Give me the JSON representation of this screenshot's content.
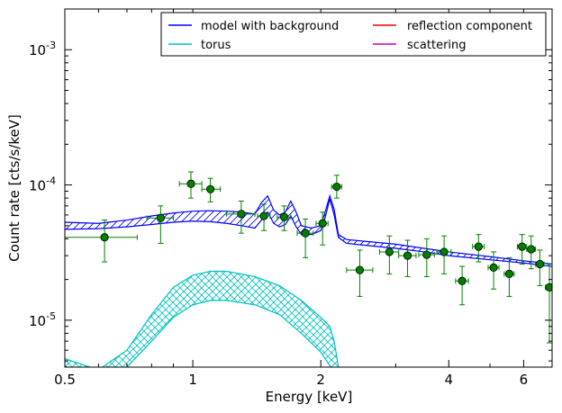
{
  "chart_data": {
    "type": "scatter",
    "xlabel": "Energy [keV]",
    "ylabel": "Count rate [cts/s/keV]",
    "xscale": "log",
    "yscale": "log",
    "xlim": [
      0.5,
      7.0
    ],
    "ylim": [
      4.5e-06,
      0.002
    ],
    "grid": false,
    "legend_position": "top-right",
    "x_ticks": [
      {
        "value": 0.5,
        "label": "0.5"
      },
      {
        "value": 1,
        "label": "1"
      },
      {
        "value": 2,
        "label": "2"
      },
      {
        "value": 4,
        "label": "4"
      },
      {
        "value": 6,
        "label": "6"
      }
    ],
    "y_ticks": [
      {
        "value": 1e-05,
        "base": "10",
        "exp": "-5"
      },
      {
        "value": 0.0001,
        "base": "10",
        "exp": "-4"
      },
      {
        "value": 0.001,
        "base": "10",
        "exp": "-3"
      }
    ],
    "legend": [
      {
        "name": "model with background",
        "color": "#0000ff"
      },
      {
        "name": "reflection component",
        "color": "#ff0000"
      },
      {
        "name": "torus",
        "color": "#00bfbf"
      },
      {
        "name": "scattering",
        "color": "#bf00bf"
      }
    ],
    "series": [
      {
        "name": "model with background",
        "color": "#0000ff",
        "style": "band",
        "x": [
          0.5,
          0.6,
          0.7,
          0.8,
          0.9,
          1.0,
          1.1,
          1.2,
          1.3,
          1.4,
          1.45,
          1.5,
          1.55,
          1.6,
          1.65,
          1.7,
          1.75,
          1.8,
          1.9,
          2.0,
          2.05,
          2.1,
          2.15,
          2.2,
          2.3,
          2.5,
          3.0,
          3.5,
          4.0,
          5.0,
          6.0,
          7.0
        ],
        "lower": [
          4.7e-05,
          4.75e-05,
          4.9e-05,
          5.1e-05,
          5.3e-05,
          5.4e-05,
          5.35e-05,
          5.2e-05,
          5e-05,
          4.8e-05,
          5.5e-05,
          6.3e-05,
          5.2e-05,
          4.9e-05,
          5.1e-05,
          5.9e-05,
          4.9e-05,
          4.3e-05,
          4.3e-05,
          4.6e-05,
          5.8e-05,
          7.9e-05,
          6e-05,
          4.1e-05,
          3.7e-05,
          3.6e-05,
          3.4e-05,
          3.2e-05,
          3e-05,
          2.8e-05,
          2.65e-05,
          2.5e-05
        ],
        "upper": [
          5.3e-05,
          5.2e-05,
          5.5e-05,
          5.9e-05,
          6.2e-05,
          6.4e-05,
          6.45e-05,
          6.4e-05,
          6.3e-05,
          6.1e-05,
          7.4e-05,
          8.3e-05,
          6.5e-05,
          6e-05,
          6.3e-05,
          7.6e-05,
          6.3e-05,
          5e-05,
          4.8e-05,
          5e-05,
          6.4e-05,
          8.3e-05,
          6.6e-05,
          4.3e-05,
          3.95e-05,
          3.85e-05,
          3.65e-05,
          3.4e-05,
          3.2e-05,
          2.95e-05,
          2.75e-05,
          2.6e-05
        ]
      },
      {
        "name": "torus",
        "color": "#00bfbf",
        "style": "band",
        "x": [
          0.5,
          0.55,
          0.6,
          0.7,
          0.8,
          0.9,
          1.0,
          1.1,
          1.2,
          1.4,
          1.6,
          1.8,
          2.0,
          2.1,
          2.15,
          2.2
        ],
        "lower": [
          4.6e-06,
          4e-06,
          3.5e-06,
          4.5e-06,
          7e-06,
          1.05e-05,
          1.3e-05,
          1.4e-05,
          1.4e-05,
          1.3e-05,
          1.1e-05,
          8e-06,
          5.8e-06,
          4.6e-06,
          4e-06,
          3.5e-06
        ],
        "upper": [
          5.2e-06,
          4.7e-06,
          4.3e-06,
          6e-06,
          1.1e-05,
          1.75e-05,
          2.15e-05,
          2.3e-05,
          2.3e-05,
          2.1e-05,
          1.8e-05,
          1.4e-05,
          1.05e-05,
          9e-06,
          7e-06,
          4.5e-06
        ]
      },
      {
        "name": "data",
        "color": "#006400",
        "style": "errorbar",
        "points": [
          {
            "x": 0.62,
            "y": 4.1e-05,
            "xlo": 0.5,
            "xhi": 0.74,
            "ylo": 2.7e-05,
            "yhi": 5.5e-05
          },
          {
            "x": 0.84,
            "y": 5.7e-05,
            "xlo": 0.78,
            "xhi": 0.9,
            "ylo": 3.7e-05,
            "yhi": 7e-05
          },
          {
            "x": 0.99,
            "y": 0.000102,
            "xlo": 0.93,
            "xhi": 1.05,
            "ylo": 8e-05,
            "yhi": 0.000125
          },
          {
            "x": 1.1,
            "y": 9.3e-05,
            "xlo": 1.05,
            "xhi": 1.16,
            "ylo": 7.5e-05,
            "yhi": 0.000112
          },
          {
            "x": 1.3,
            "y": 6.1e-05,
            "xlo": 1.2,
            "xhi": 1.4,
            "ylo": 4.4e-05,
            "yhi": 7.6e-05
          },
          {
            "x": 1.47,
            "y": 5.9e-05,
            "xlo": 1.42,
            "xhi": 1.52,
            "ylo": 4.6e-05,
            "yhi": 7.2e-05
          },
          {
            "x": 1.64,
            "y": 5.8e-05,
            "xlo": 1.58,
            "xhi": 1.7,
            "ylo": 4.6e-05,
            "yhi": 7e-05
          },
          {
            "x": 1.84,
            "y": 4.4e-05,
            "xlo": 1.76,
            "xhi": 1.92,
            "ylo": 2.9e-05,
            "yhi": 5.6e-05
          },
          {
            "x": 2.02,
            "y": 5.2e-05,
            "xlo": 1.95,
            "xhi": 2.08,
            "ylo": 3.6e-05,
            "yhi": 6.3e-05
          },
          {
            "x": 2.18,
            "y": 9.7e-05,
            "xlo": 2.12,
            "xhi": 2.24,
            "ylo": 8e-05,
            "yhi": 0.000118
          },
          {
            "x": 2.47,
            "y": 2.35e-05,
            "xlo": 2.3,
            "xhi": 2.65,
            "ylo": 1.5e-05,
            "yhi": 3.3e-05
          },
          {
            "x": 2.9,
            "y": 3.2e-05,
            "xlo": 2.75,
            "xhi": 3.05,
            "ylo": 2.2e-05,
            "yhi": 4.2e-05
          },
          {
            "x": 3.2,
            "y": 3e-05,
            "xlo": 3.05,
            "xhi": 3.35,
            "ylo": 2.1e-05,
            "yhi": 3.9e-05
          },
          {
            "x": 3.55,
            "y": 3.05e-05,
            "xlo": 3.4,
            "xhi": 3.7,
            "ylo": 2.1e-05,
            "yhi": 4e-05
          },
          {
            "x": 3.9,
            "y": 3.2e-05,
            "xlo": 3.75,
            "xhi": 4.05,
            "ylo": 2.2e-05,
            "yhi": 4.2e-05
          },
          {
            "x": 4.3,
            "y": 1.95e-05,
            "xlo": 4.15,
            "xhi": 4.45,
            "ylo": 1.3e-05,
            "yhi": 2.5e-05
          },
          {
            "x": 4.7,
            "y": 3.5e-05,
            "xlo": 4.55,
            "xhi": 4.85,
            "ylo": 2.7e-05,
            "yhi": 4.3e-05
          },
          {
            "x": 5.1,
            "y": 2.45e-05,
            "xlo": 4.95,
            "xhi": 5.25,
            "ylo": 1.7e-05,
            "yhi": 3.2e-05
          },
          {
            "x": 5.55,
            "y": 2.2e-05,
            "xlo": 5.4,
            "xhi": 5.7,
            "ylo": 1.5e-05,
            "yhi": 2.9e-05
          },
          {
            "x": 5.95,
            "y": 3.5e-05,
            "xlo": 5.8,
            "xhi": 6.1,
            "ylo": 2.6e-05,
            "yhi": 4.3e-05
          },
          {
            "x": 6.25,
            "y": 3.35e-05,
            "xlo": 6.1,
            "xhi": 6.4,
            "ylo": 2.4e-05,
            "yhi": 4.2e-05
          },
          {
            "x": 6.55,
            "y": 2.6e-05,
            "xlo": 6.4,
            "xhi": 6.7,
            "ylo": 1.8e-05,
            "yhi": 3.3e-05
          },
          {
            "x": 6.9,
            "y": 1.75e-05,
            "xlo": 6.75,
            "xhi": 7.0,
            "ylo": 6.8e-06,
            "yhi": 2.6e-05
          }
        ]
      }
    ]
  }
}
